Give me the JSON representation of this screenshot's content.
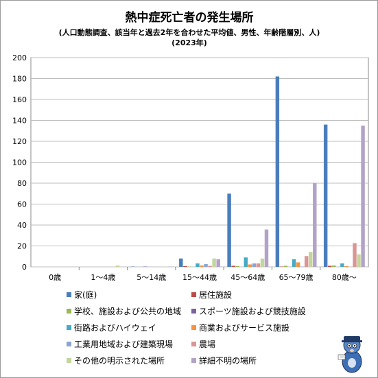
{
  "chart_data": {
    "type": "bar",
    "title": "熱中症死亡者の発生場所",
    "subtitle": "(人口動態調査、該当年と過去2年を合わせた平均値、男性、年齢階層別、人)",
    "subtitle2": "(2023年)",
    "xlabel": "",
    "ylabel": "",
    "ylim": [
      0,
      200
    ],
    "yticks": [
      "0",
      "20",
      "40",
      "60",
      "80",
      "100",
      "120",
      "140",
      "160",
      "180",
      "200"
    ],
    "grid": true,
    "legend_position": "bottom",
    "categories": [
      "0歳",
      "1～4歳",
      "5～14歳",
      "15～44歳",
      "45～64歳",
      "65～79歳",
      "80歳～"
    ],
    "series": [
      {
        "name": "家(庭)",
        "color": "#4a7ebb",
        "values": [
          0,
          0,
          0.3,
          8,
          70,
          182,
          136
        ]
      },
      {
        "name": "居住施設",
        "color": "#be4b48",
        "values": [
          0,
          0,
          0,
          0.7,
          1,
          0.3,
          1
        ]
      },
      {
        "name": "学校、施設および公共の地域",
        "color": "#98b954",
        "values": [
          0,
          0,
          0,
          0.3,
          0.7,
          1,
          1.3
        ]
      },
      {
        "name": "スポーツ施設および競技施設",
        "color": "#7d60a0",
        "values": [
          0,
          0,
          0.3,
          0,
          0,
          0,
          0
        ]
      },
      {
        "name": "街路およびハイウェイ",
        "color": "#46aac5",
        "values": [
          0,
          0,
          0,
          3.3,
          9,
          7.3,
          3.3
        ]
      },
      {
        "name": "商業およびサービス施設",
        "color": "#f69240",
        "values": [
          0,
          0,
          0,
          1.3,
          2.3,
          4.3,
          0.7
        ]
      },
      {
        "name": "工業用地域および建築現場",
        "color": "#8aa5d0",
        "values": [
          0,
          0,
          0,
          2.7,
          3.3,
          0.3,
          0
        ]
      },
      {
        "name": "農場",
        "color": "#d99694",
        "values": [
          0,
          0,
          0,
          1,
          3.3,
          10.3,
          22.7
        ]
      },
      {
        "name": "その他の明示された場所",
        "color": "#c3d69b",
        "values": [
          0,
          1.3,
          0.3,
          8,
          8,
          14.3,
          12
        ]
      },
      {
        "name": "詳細不明の場所",
        "color": "#b3a2c7",
        "values": [
          0,
          0,
          0.3,
          7.3,
          35.7,
          80,
          135
        ]
      }
    ]
  }
}
